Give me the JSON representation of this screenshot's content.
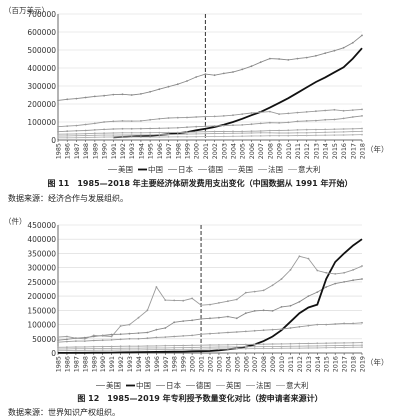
{
  "colors": {
    "usa": "#8a8a8a",
    "china": "#111111",
    "japan": "#9a9a9a",
    "germany": "#9a9a9a",
    "uk": "#b0b0b0",
    "france": "#a8a8a8",
    "italy": "#b4b4b4",
    "axis": "#444444",
    "grid": "#d8d8d8"
  },
  "figure1": {
    "caption": "图 11　1985—2018 年主要经济体研发费用支出变化（中国数据从 1991 年开始）",
    "source": "数据来源：经济合作与发展组织。",
    "chart_data": {
      "type": "line",
      "ylabel": "（百万美元）",
      "xlabel": "（年）",
      "ylim": [
        0,
        700000
      ],
      "yticks": [
        "0",
        "100000",
        "200000",
        "300000",
        "400000",
        "500000",
        "600000",
        "700000"
      ],
      "y_tick_values": [
        0,
        100000,
        200000,
        300000,
        400000,
        500000,
        600000,
        700000
      ],
      "categories": [
        "1985",
        "1986",
        "1987",
        "1988",
        "1989",
        "1990",
        "1991",
        "1992",
        "1993",
        "1994",
        "1995",
        "1996",
        "1997",
        "1998",
        "1999",
        "2000",
        "2001",
        "2002",
        "2003",
        "2004",
        "2005",
        "2006",
        "2007",
        "2008",
        "2009",
        "2010",
        "2011",
        "2012",
        "2013",
        "2014",
        "2015",
        "2016",
        "2017",
        "2018"
      ],
      "grid": true,
      "legend_position": "bottom",
      "marker_year": "2001",
      "series": [
        {
          "name": "美国",
          "key": "usa",
          "values": [
            220000,
            226000,
            230000,
            236000,
            242000,
            246000,
            252000,
            254000,
            250000,
            256000,
            268000,
            282000,
            296000,
            310000,
            328000,
            350000,
            366000,
            360000,
            370000,
            378000,
            392000,
            410000,
            432000,
            452000,
            450000,
            445000,
            452000,
            458000,
            468000,
            482000,
            496000,
            512000,
            540000,
            581000
          ]
        },
        {
          "name": "中国",
          "key": "china",
          "values": [
            null,
            null,
            null,
            null,
            null,
            null,
            15000,
            17000,
            19000,
            21000,
            24000,
            28000,
            32000,
            37000,
            44000,
            54000,
            62000,
            72000,
            85000,
            100000,
            118000,
            138000,
            156000,
            180000,
            206000,
            232000,
            262000,
            292000,
            322000,
            348000,
            376000,
            404000,
            452000,
            510000
          ]
        },
        {
          "name": "日本",
          "key": "japan",
          "values": [
            74000,
            77000,
            80000,
            86000,
            92000,
            100000,
            104000,
            106000,
            105000,
            106000,
            112000,
            118000,
            122000,
            124000,
            125000,
            128000,
            130000,
            131000,
            134000,
            138000,
            144000,
            150000,
            154000,
            158000,
            144000,
            148000,
            152000,
            156000,
            160000,
            164000,
            168000,
            162000,
            166000,
            170000
          ]
        },
        {
          "name": "德国",
          "key": "germany",
          "values": [
            46000,
            49000,
            51000,
            53000,
            56000,
            59000,
            61000,
            62000,
            62000,
            63000,
            64000,
            65000,
            66000,
            68000,
            71000,
            74000,
            76000,
            78000,
            80000,
            82000,
            84000,
            88000,
            92000,
            96000,
            95000,
            98000,
            104000,
            106000,
            108000,
            112000,
            114000,
            120000,
            128000,
            134000
          ]
        },
        {
          "name": "英国",
          "key": "uk",
          "values": [
            22000,
            23000,
            24000,
            25000,
            26000,
            27000,
            27000,
            28000,
            28000,
            28500,
            29000,
            29500,
            30000,
            31000,
            33000,
            34000,
            35000,
            36000,
            36500,
            37000,
            38000,
            39000,
            40000,
            40000,
            39000,
            39000,
            40000,
            40000,
            41000,
            43000,
            44000,
            45000,
            47000,
            48000
          ]
        },
        {
          "name": "法国",
          "key": "france",
          "values": [
            32000,
            33000,
            34000,
            35000,
            37000,
            38000,
            39000,
            40000,
            40000,
            40000,
            40500,
            41000,
            41000,
            41500,
            43000,
            45000,
            46000,
            47000,
            47000,
            47500,
            48000,
            49000,
            50000,
            52000,
            53000,
            54000,
            56000,
            57000,
            58000,
            59000,
            60000,
            61000,
            62000,
            64000
          ]
        },
        {
          "name": "意大利",
          "key": "italy",
          "values": [
            12000,
            12500,
            13000,
            14000,
            15000,
            16000,
            16500,
            17000,
            16500,
            16000,
            16000,
            16500,
            17000,
            17500,
            18000,
            18500,
            19000,
            20000,
            20000,
            20500,
            21000,
            22000,
            23000,
            24000,
            24000,
            24000,
            25000,
            25000,
            26000,
            26500,
            27000,
            28000,
            29000,
            30000
          ]
        }
      ]
    }
  },
  "figure2": {
    "caption": "图 12　1985—2019 年专利授予数量变化对比（按申请者来源计）",
    "source": "数据来源：世界知识产权组织。",
    "chart_data": {
      "type": "line",
      "ylabel": "（件）",
      "xlabel": "（年）",
      "ylim": [
        0,
        450000
      ],
      "yticks": [
        "0",
        "50000",
        "100000",
        "150000",
        "200000",
        "250000",
        "300000",
        "350000",
        "400000",
        "450000"
      ],
      "y_tick_values": [
        0,
        50000,
        100000,
        150000,
        200000,
        250000,
        300000,
        350000,
        400000,
        450000
      ],
      "categories": [
        "1985",
        "1986",
        "1987",
        "1988",
        "1989",
        "1990",
        "1991",
        "1992",
        "1993",
        "1994",
        "1995",
        "1996",
        "1997",
        "1998",
        "1999",
        "2000",
        "2001",
        "2002",
        "2003",
        "2004",
        "2005",
        "2006",
        "2007",
        "2008",
        "2009",
        "2010",
        "2011",
        "2012",
        "2013",
        "2014",
        "2015",
        "2016",
        "2017",
        "2018",
        "2019"
      ],
      "grid": true,
      "legend_position": "bottom",
      "marker_year": "2001",
      "series": [
        {
          "name": "美国",
          "key": "usa",
          "values": [
            45000,
            48000,
            52000,
            54000,
            58000,
            62000,
            65000,
            66000,
            68000,
            70000,
            72000,
            82000,
            88000,
            108000,
            112000,
            115000,
            120000,
            122000,
            124000,
            128000,
            122000,
            140000,
            148000,
            150000,
            148000,
            162000,
            166000,
            180000,
            200000,
            214000,
            232000,
            244000,
            250000,
            256000,
            260000
          ]
        },
        {
          "name": "中国",
          "key": "china",
          "values": [
            200,
            400,
            600,
            800,
            1000,
            1200,
            1500,
            2000,
            2600,
            3000,
            3400,
            3800,
            4200,
            4600,
            5000,
            6000,
            6200,
            7000,
            9000,
            13000,
            16000,
            22000,
            30000,
            42000,
            58000,
            80000,
            110000,
            140000,
            160000,
            170000,
            260000,
            320000,
            350000,
            378000,
            400000
          ]
        },
        {
          "name": "日本",
          "key": "japan",
          "values": [
            56000,
            58000,
            52000,
            50000,
            62000,
            60000,
            58000,
            95000,
            100000,
            124000,
            150000,
            232000,
            186000,
            185000,
            184000,
            192000,
            168000,
            170000,
            176000,
            182000,
            188000,
            212000,
            216000,
            220000,
            238000,
            260000,
            292000,
            340000,
            332000,
            290000,
            282000,
            278000,
            282000,
            292000,
            306000
          ]
        },
        {
          "name": "德国",
          "key": "germany",
          "values": [
            38000,
            40000,
            42000,
            42000,
            44000,
            45000,
            46000,
            48000,
            50000,
            50000,
            52000,
            55000,
            56000,
            58000,
            60000,
            62000,
            66000,
            68000,
            70000,
            72000,
            74000,
            76000,
            78000,
            80000,
            82000,
            84000,
            88000,
            92000,
            96000,
            100000,
            100000,
            102000,
            104000,
            104000,
            106000
          ]
        },
        {
          "name": "英国",
          "key": "uk",
          "values": [
            14000,
            14500,
            15000,
            15000,
            15500,
            16000,
            16000,
            16500,
            17000,
            17000,
            17500,
            18000,
            18000,
            18500,
            19000,
            19500,
            20000,
            20500,
            21000,
            21000,
            21500,
            22000,
            22000,
            22500,
            22500,
            23000,
            23500,
            24000,
            24500,
            25000,
            25500,
            26000,
            26500,
            27000,
            27500
          ]
        },
        {
          "name": "法国",
          "key": "france",
          "values": [
            20000,
            20500,
            21000,
            21500,
            22000,
            22500,
            23000,
            23500,
            24000,
            24000,
            24500,
            25000,
            25500,
            26000,
            26500,
            27000,
            27500,
            28000,
            28500,
            29000,
            29500,
            30000,
            30500,
            31000,
            31500,
            32000,
            32500,
            33000,
            33500,
            34000,
            34500,
            35000,
            35500,
            36000,
            36500
          ]
        },
        {
          "name": "意大利",
          "key": "italy",
          "values": [
            8000,
            8500,
            9000,
            9000,
            9500,
            10000,
            10000,
            10500,
            11000,
            11000,
            11500,
            12000,
            12000,
            12500,
            13000,
            13000,
            13500,
            14000,
            14000,
            14500,
            15000,
            15000,
            15500,
            16000,
            16000,
            16500,
            17000,
            17000,
            17500,
            18000,
            18500,
            19000,
            19500,
            20000,
            20500
          ]
        }
      ]
    }
  }
}
